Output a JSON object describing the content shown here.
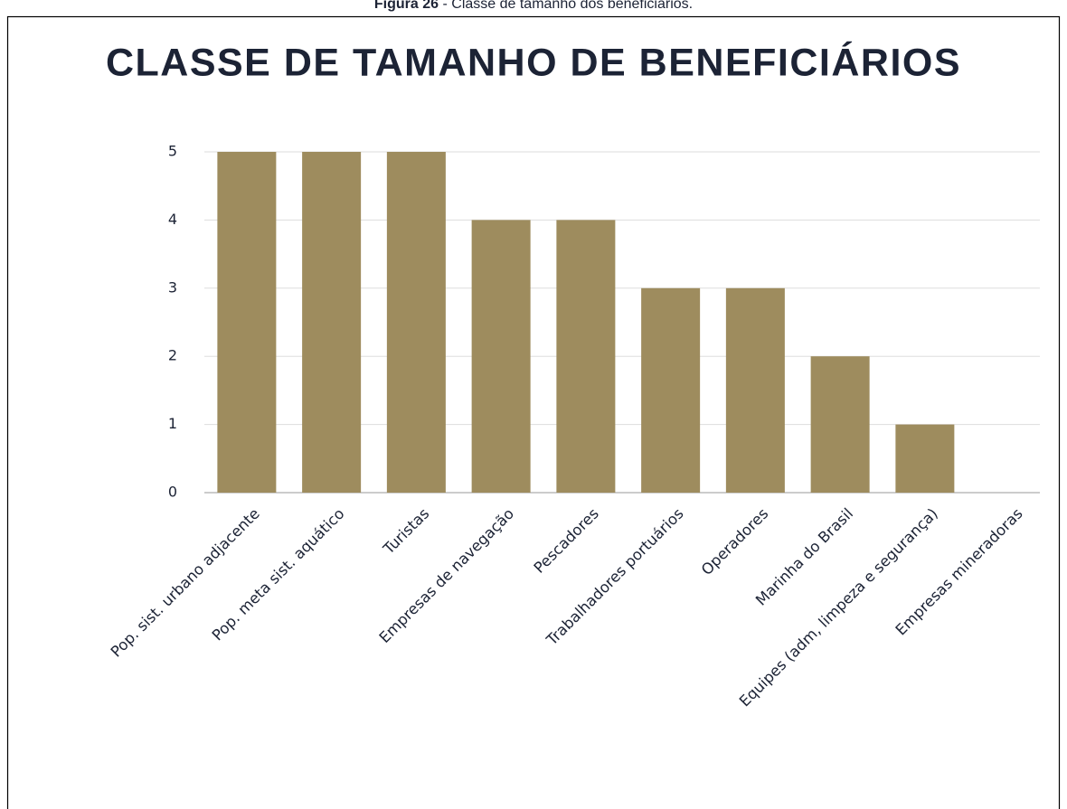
{
  "caption": {
    "label": "Figura 26",
    "text": " - Classe de tamanho dos beneficiários."
  },
  "chart_data": {
    "type": "bar",
    "title": "CLASSE DE TAMANHO DE BENEFICIÁRIOS",
    "categories": [
      "Pop. sist. urbano adjacente",
      "Pop. meta sist. aquático",
      "Turistas",
      "Empresas de navegação",
      "Pescadores",
      "Trabalhadores portuários",
      "Operadores",
      "Marinha do Brasil",
      "Equipes (adm, limpeza e segurança)",
      "Empresas mineradoras"
    ],
    "values": [
      5,
      5,
      5,
      4,
      4,
      3,
      3,
      2,
      1,
      0
    ],
    "color": "#9e8c5e",
    "ylim": [
      0,
      5
    ],
    "yticks": [
      0,
      1,
      2,
      3,
      4,
      5
    ],
    "grid": true
  }
}
